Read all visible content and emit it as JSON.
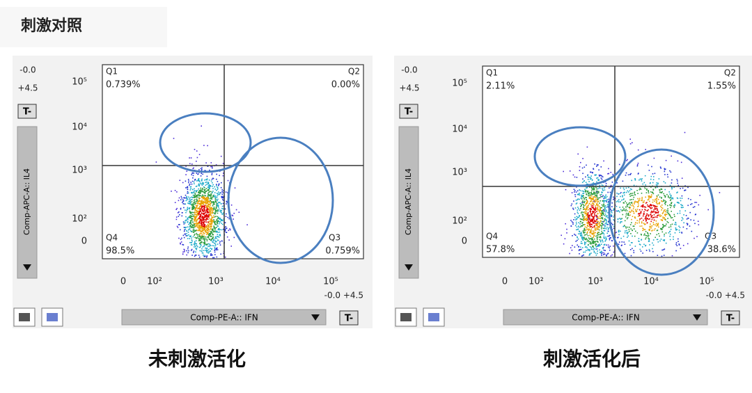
{
  "header": {
    "title": "刺激对照"
  },
  "panels": [
    {
      "range_top": "-0.0",
      "range_bottom": "+4.5",
      "button": "T-",
      "y_axis_label": "Comp-APC-A:: IL4",
      "x_axis_label": "Comp-PE-A:: IFN",
      "x_range": "-0.0 +4.5",
      "yticks": [
        "10⁵",
        "10⁴",
        "10³",
        "10²",
        "0"
      ],
      "xticks": [
        "0",
        "10²",
        "10³",
        "10⁴",
        "10⁵"
      ],
      "quadrants": [
        {
          "name": "Q1",
          "percent": "0.739%"
        },
        {
          "name": "Q2",
          "percent": "0.00%"
        },
        {
          "name": "Q3",
          "percent": "0.759%"
        },
        {
          "name": "Q4",
          "percent": "98.5%"
        }
      ],
      "caption": "未刺激活化"
    },
    {
      "range_top": "-0.0",
      "range_bottom": "+4.5",
      "button": "T-",
      "y_axis_label": "Comp-APC-A:: IL4",
      "x_axis_label": "Comp-PE-A:: IFN",
      "x_range": "-0.0 +4.5",
      "yticks": [
        "10⁵",
        "10⁴",
        "10³",
        "10²",
        "0"
      ],
      "xticks": [
        "0",
        "10²",
        "10³",
        "10⁴",
        "10⁵"
      ],
      "quadrants": [
        {
          "name": "Q1",
          "percent": "2.11%"
        },
        {
          "name": "Q2",
          "percent": "1.55%"
        },
        {
          "name": "Q3",
          "percent": "38.6%"
        },
        {
          "name": "Q4",
          "percent": "57.8%"
        }
      ],
      "caption": "刺激活化后"
    }
  ]
}
